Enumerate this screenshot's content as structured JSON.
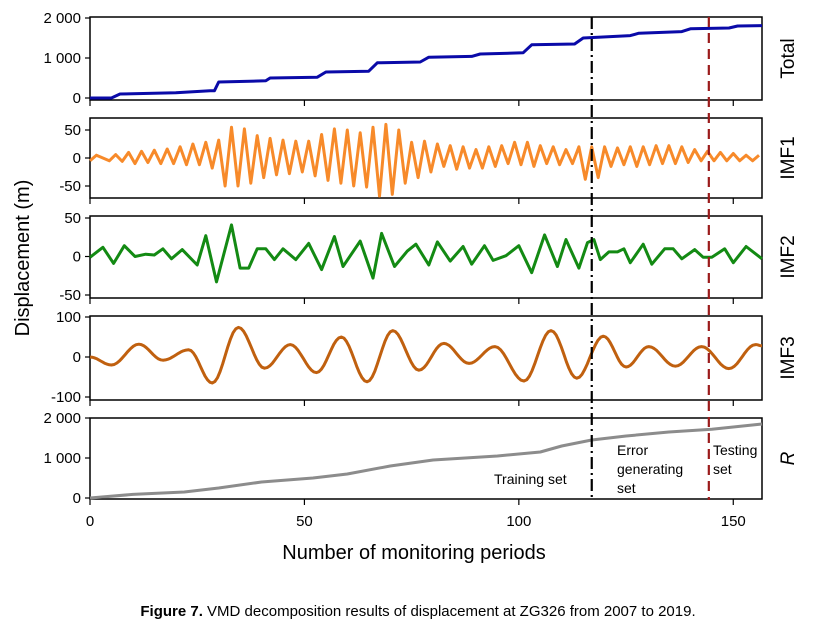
{
  "chart_data": {
    "type": "line",
    "ylabel": "Displacement (m)",
    "xlabel": "Number of monitoring periods",
    "xlim": [
      0,
      156.7
    ],
    "xticks": [
      "0",
      "50",
      "100",
      "150"
    ],
    "xtick_values": [
      0,
      50,
      100,
      150
    ],
    "caption_bold": "Figure 7.",
    "caption_rest": " VMD decomposition results of displacement at ZG326 from 2007 to 2019.",
    "split_lines": [
      {
        "name": "training-boundary",
        "x": 117,
        "color": "#000000",
        "style": "dash-dot"
      },
      {
        "name": "testing-boundary",
        "x": 144.3,
        "color": "#9b1b1b",
        "style": "dashed"
      }
    ],
    "annotations": {
      "training": "Training set",
      "error_lines": [
        "Error",
        "generating",
        "set"
      ],
      "testing_lines": [
        "Testing",
        "set"
      ]
    },
    "panels": [
      {
        "label": "Total",
        "color": "#0a0aa8",
        "ytick_labels": [
          "2 000",
          "1 000",
          "0"
        ],
        "ytick_values": [
          2000,
          1000,
          0
        ],
        "x": [
          0,
          5,
          7,
          20,
          28,
          29,
          30,
          41,
          42,
          53,
          55,
          65,
          67,
          77,
          79,
          89,
          91,
          101,
          103,
          113,
          115,
          126,
          128,
          138,
          140,
          149,
          151,
          156.7
        ],
        "y": [
          0,
          0,
          100,
          130,
          180,
          180,
          400,
          430,
          500,
          520,
          650,
          670,
          880,
          900,
          1020,
          1040,
          1100,
          1130,
          1330,
          1350,
          1500,
          1560,
          1620,
          1660,
          1730,
          1750,
          1800,
          1810
        ]
      },
      {
        "label": "IMF1",
        "color": "#f78a2a",
        "ytick_labels": [
          "50",
          "0",
          "-50"
        ],
        "ytick_values": [
          50,
          0,
          -50
        ],
        "x_step": 1.5,
        "y": [
          -5,
          5,
          0,
          -5,
          6,
          -6,
          10,
          -10,
          12,
          -8,
          14,
          -10,
          16,
          -10,
          20,
          -12,
          25,
          -12,
          28,
          -18,
          32,
          -50,
          55,
          -50,
          52,
          -45,
          40,
          -35,
          35,
          -30,
          32,
          -28,
          30,
          -25,
          30,
          -32,
          42,
          -40,
          52,
          -45,
          50,
          -50,
          45,
          -52,
          55,
          -68,
          60,
          -65,
          50,
          -45,
          28,
          -35,
          30,
          -25,
          25,
          -15,
          22,
          -20,
          20,
          -18,
          15,
          -18,
          20,
          -15,
          22,
          -10,
          28,
          -12,
          28,
          -15,
          22,
          -10,
          20,
          -12,
          15,
          -10,
          20,
          -38,
          20,
          -35,
          20,
          -15,
          18,
          -12,
          20,
          -15,
          20,
          -12,
          22,
          -10,
          22,
          -10,
          20,
          -8,
          15,
          -5,
          12,
          -5,
          10,
          -5,
          8,
          -5,
          5,
          -5,
          5
        ]
      },
      {
        "label": "IMF2",
        "color": "#138a13",
        "ytick_labels": [
          "50",
          "0",
          "-50"
        ],
        "ytick_values": [
          50,
          0,
          -50
        ],
        "x": [
          0,
          3,
          5.5,
          8,
          10.5,
          13,
          15,
          17,
          19,
          21.5,
          25,
          27,
          29.5,
          33,
          35,
          37,
          39,
          41,
          43,
          45,
          48,
          51,
          54,
          57,
          59,
          63,
          66,
          68,
          71,
          74,
          76,
          79,
          81,
          84,
          87,
          89,
          92,
          94,
          97,
          100,
          103,
          106,
          109,
          111,
          114,
          116,
          117.5,
          119,
          121,
          123,
          124.5,
          126,
          129,
          131,
          134,
          136,
          138,
          141,
          143,
          145,
          148,
          150,
          153,
          156.7
        ],
        "y": [
          -1,
          12,
          -9,
          14,
          0,
          3,
          2,
          10,
          -3,
          9,
          -11,
          27,
          -33,
          41,
          -15,
          -15,
          10,
          10,
          -4,
          10,
          -4,
          17,
          -17,
          26,
          -13,
          20,
          -28,
          30,
          -13,
          7,
          16,
          -11,
          19,
          -6,
          13,
          -10,
          14,
          -5,
          1,
          14,
          -21,
          28,
          -13,
          22,
          -15,
          18,
          22,
          -4,
          6,
          6,
          10,
          -8,
          16,
          -10,
          10,
          10,
          -3,
          9,
          -1,
          -1,
          10,
          -8,
          13,
          -3
        ]
      },
      {
        "label": "IMF3",
        "color": "#c0600f",
        "ytick_labels": [
          "100",
          "0",
          "-100"
        ],
        "ytick_values": [
          100,
          0,
          -100
        ],
        "x": [
          0,
          5,
          11.4,
          17,
          23,
          28.5,
          34.6,
          40.7,
          46.7,
          52.8,
          58.6,
          64.6,
          70.6,
          76.7,
          82.5,
          88.4,
          94.4,
          101.2,
          107.5,
          113.5,
          119.7,
          125,
          130.3,
          136.5,
          142.6,
          149,
          155.2,
          156.7
        ],
        "y": [
          0,
          -20,
          32,
          -8,
          18,
          -65,
          74,
          -28,
          31,
          -39,
          50,
          -62,
          66,
          -33,
          34,
          -16,
          26,
          -60,
          66,
          -53,
          52,
          -25,
          26,
          -23,
          26,
          -29,
          31,
          28
        ]
      },
      {
        "label": "R",
        "color": "#8c8c8c",
        "ytick_labels": [
          "2 000",
          "1 000",
          "0"
        ],
        "ytick_values": [
          2000,
          1000,
          0
        ],
        "x": [
          0,
          10,
          22,
          30,
          40,
          52,
          60,
          70,
          80,
          95,
          105,
          110,
          117,
          125,
          135,
          145,
          156.7
        ],
        "y": [
          0,
          90,
          150,
          250,
          400,
          500,
          600,
          800,
          950,
          1050,
          1150,
          1300,
          1450,
          1550,
          1650,
          1720,
          1850
        ]
      }
    ]
  }
}
